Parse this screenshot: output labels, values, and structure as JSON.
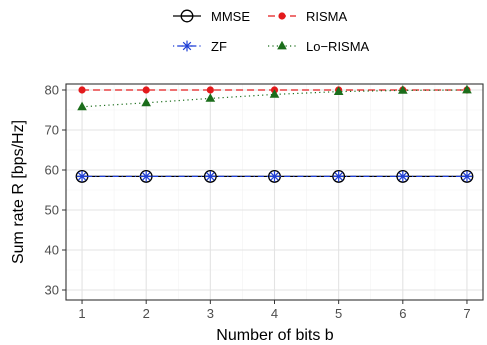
{
  "chart_data": {
    "type": "line",
    "title": "",
    "xlabel": "Number of bits b",
    "ylabel": "Sum rate R [bps/Hz]",
    "x": [
      1,
      2,
      3,
      4,
      5,
      6,
      7
    ],
    "xlim": [
      0.75,
      7.25
    ],
    "ylim": [
      27.5,
      81.5
    ],
    "x_ticks": [
      1,
      2,
      3,
      4,
      5,
      6,
      7
    ],
    "y_ticks": [
      30,
      40,
      50,
      60,
      70,
      80
    ],
    "grid": true,
    "legend_position": "top",
    "series": [
      {
        "name": "MMSE",
        "color": "#000000",
        "marker": "circle-open",
        "line": "solid",
        "values": [
          58.4,
          58.4,
          58.4,
          58.4,
          58.4,
          58.4,
          58.4
        ]
      },
      {
        "name": "RISMA",
        "color": "#e31a1c",
        "marker": "circle-filled",
        "line": "dashed",
        "values": [
          80.0,
          80.0,
          80.0,
          80.0,
          80.0,
          80.0,
          80.0
        ]
      },
      {
        "name": "ZF",
        "color": "#1f3fd6",
        "marker": "asterisk",
        "line": "dotdash",
        "values": [
          58.4,
          58.4,
          58.4,
          58.4,
          58.4,
          58.4,
          58.4
        ]
      },
      {
        "name": "Lo−RISMA",
        "color": "#1b6d1b",
        "marker": "triangle",
        "line": "dotted",
        "values": [
          75.8,
          76.8,
          77.9,
          78.9,
          79.6,
          79.9,
          80.0
        ]
      }
    ]
  }
}
